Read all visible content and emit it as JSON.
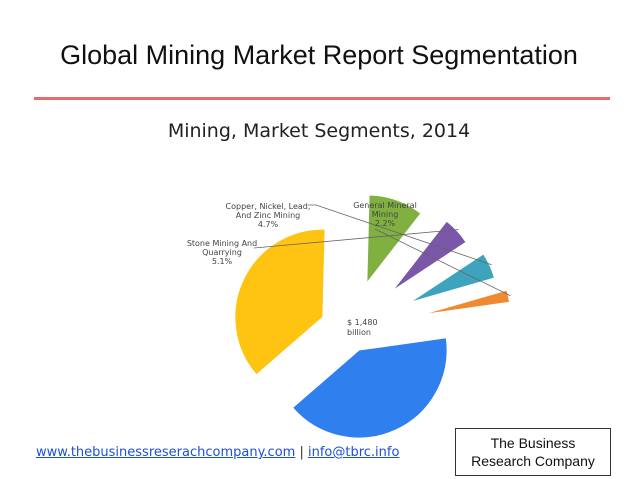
{
  "slide": {
    "title": "Global Mining Market Report Segmentation"
  },
  "footer": {
    "website": "www.thebusinessreserachcompany.com",
    "separator": " | ",
    "email": "info@tbrc.info",
    "company_line1": "The Business",
    "company_line2": "Research Company"
  },
  "chart_data": {
    "type": "pie",
    "title": "Mining, Market Segments, 2014",
    "center_label": [
      "$ 1,480",
      "billion"
    ],
    "slices": [
      {
        "name": "",
        "value": 40.0,
        "color": "#2f7fef"
      },
      {
        "name": "",
        "value": 36.0,
        "color": "#ffc312"
      },
      {
        "name": "",
        "value": 9.9,
        "color": "#7fb040"
      },
      {
        "name": "Stone Mining And Quarrying",
        "label_lines": [
          "Stone Mining And",
          "Quarrying",
          "5.1%"
        ],
        "value": 5.1,
        "color": "#7a57a8"
      },
      {
        "name": "Copper, Nickel, Lead, And Zinc Mining",
        "label_lines": [
          "Copper, Nickel, Lead,",
          "And Zinc Mining",
          "4.7%"
        ],
        "value": 4.7,
        "color": "#3ea3bd"
      },
      {
        "name": "General Mineral Mining",
        "label_lines": [
          "General Mineral",
          "Mining",
          "2.2%"
        ],
        "value": 2.2,
        "color": "#f08a30"
      }
    ]
  }
}
